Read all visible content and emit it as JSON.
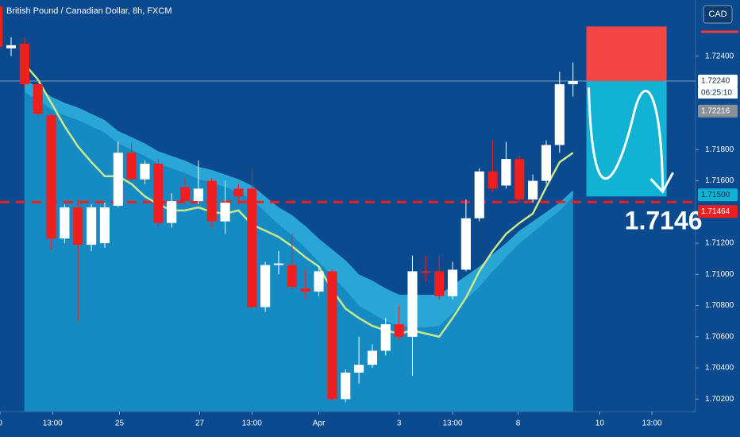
{
  "chart_data": {
    "type": "candlestick",
    "title": "British Pound / Canadian Dollar, 8h, FXCM",
    "currency": "CAD",
    "open": [
      1.7272,
      1.7245,
      1.7248,
      1.7222,
      1.7202,
      1.7123,
      1.7143,
      1.7119,
      1.712,
      1.7144,
      1.7178,
      1.7161,
      1.7171,
      1.7133,
      1.7156,
      1.7147,
      1.716,
      1.7134,
      1.7155,
      1.7155,
      1.7079,
      1.7106,
      1.7106,
      1.7091,
      1.7089,
      1.7102,
      1.702,
      1.7037,
      1.7042,
      1.7051,
      1.7068,
      1.706,
      1.7102,
      1.7102,
      1.7086,
      1.7103,
      1.7136,
      1.7166,
      1.7157,
      1.7174,
      1.7148,
      1.716,
      1.7183,
      1.7222
    ],
    "high": [
      1.7276,
      1.7252,
      1.7252,
      1.7224,
      1.7203,
      1.7145,
      1.7148,
      1.7145,
      1.7146,
      1.7185,
      1.7184,
      1.7173,
      1.7174,
      1.7152,
      1.7162,
      1.7173,
      1.7162,
      1.716,
      1.7158,
      1.7168,
      1.7108,
      1.7115,
      1.7126,
      1.7103,
      1.7105,
      1.7103,
      1.7039,
      1.706,
      1.7055,
      1.7072,
      1.708,
      1.7112,
      1.7112,
      1.7112,
      1.7108,
      1.7148,
      1.7168,
      1.7186,
      1.7185,
      1.7176,
      1.7164,
      1.7186,
      1.723,
      1.7236
    ],
    "low": [
      1.7224,
      1.724,
      1.722,
      1.72,
      1.7116,
      1.712,
      1.707,
      1.7115,
      1.7117,
      1.7143,
      1.7159,
      1.7158,
      1.713,
      1.713,
      1.7145,
      1.7145,
      1.713,
      1.7126,
      1.7145,
      1.7078,
      1.7076,
      1.71,
      1.709,
      1.7084,
      1.7086,
      1.7019,
      1.7018,
      1.703,
      1.704,
      1.7048,
      1.7058,
      1.7035,
      1.7095,
      1.7084,
      1.7084,
      1.7102,
      1.7134,
      1.7153,
      1.7155,
      1.7146,
      1.7146,
      1.7158,
      1.7178,
      1.7214
    ],
    "close": [
      1.7246,
      1.7247,
      1.7222,
      1.7203,
      1.7123,
      1.7143,
      1.7119,
      1.7143,
      1.7143,
      1.7178,
      1.7161,
      1.7171,
      1.7133,
      1.7147,
      1.7147,
      1.7155,
      1.7134,
      1.7146,
      1.715,
      1.7079,
      1.7106,
      1.7107,
      1.7092,
      1.7089,
      1.7102,
      1.702,
      1.7037,
      1.7042,
      1.7051,
      1.7068,
      1.706,
      1.7102,
      1.7101,
      1.7086,
      1.7103,
      1.7136,
      1.7166,
      1.7155,
      1.7174,
      1.7148,
      1.716,
      1.7183,
      1.7222,
      1.7224
    ],
    "ema": [
      null,
      null,
      1.7235,
      1.7225,
      1.721,
      1.7195,
      1.7182,
      1.7172,
      1.7163,
      1.7163,
      1.7158,
      1.715,
      1.7145,
      1.7141,
      1.7141,
      1.7143,
      1.714,
      1.7139,
      1.7141,
      1.7132,
      1.7128,
      1.7124,
      1.7118,
      1.7111,
      1.7105,
      1.709,
      1.7078,
      1.7072,
      1.7067,
      1.7064,
      1.7062,
      1.7064,
      1.7062,
      1.706,
      1.7072,
      1.7085,
      1.7102,
      1.7115,
      1.7126,
      1.7133,
      1.7139,
      1.7156,
      1.7172,
      1.7178
    ],
    "cloud_upper": [
      null,
      null,
      1.7225,
      1.722,
      1.7214,
      1.721,
      1.7207,
      1.7203,
      1.7199,
      1.7192,
      1.7188,
      1.7184,
      1.7179,
      1.7176,
      1.7173,
      1.7169,
      1.7167,
      1.7164,
      1.7161,
      1.7157,
      1.715,
      1.7143,
      1.7138,
      1.7131,
      1.7123,
      1.7116,
      1.7109,
      1.71,
      1.7096,
      1.7091,
      1.7087,
      1.7087,
      1.7087,
      1.7087,
      1.7093,
      1.7099,
      1.7105,
      1.7113,
      1.712,
      1.7128,
      1.7134,
      1.714,
      1.7146,
      1.7154
    ],
    "cloud_lower": [
      null,
      null,
      1.7217,
      1.7212,
      1.7206,
      1.7202,
      1.7199,
      1.7195,
      1.7191,
      1.7184,
      1.718,
      1.7176,
      1.7171,
      1.7168,
      1.7165,
      1.7161,
      1.7159,
      1.7156,
      1.7153,
      1.7148,
      1.714,
      1.7132,
      1.7125,
      1.7117,
      1.7108,
      1.7099,
      1.709,
      1.708,
      1.7075,
      1.707,
      1.7067,
      1.7066,
      1.7066,
      1.7067,
      1.7075,
      1.7084,
      1.7092,
      1.7102,
      1.7111,
      1.712,
      1.7127,
      1.7134,
      1.7141,
      1.715
    ],
    "up_color": "#ffffff",
    "down_color": "#f01f1f",
    "ema_color": "#c8e88a",
    "cloud_upper_color": "#2aa6d6",
    "cloud_lower_color": "#168bc3",
    "xlim": [
      0.17,
      52.16
    ],
    "xticks": [
      {
        "value": 0.17,
        "label": "0"
      },
      {
        "value": 4.1,
        "label": "13:00"
      },
      {
        "value": 9.1,
        "label": "25"
      },
      {
        "value": 15.1,
        "label": "27"
      },
      {
        "value": 19.0,
        "label": "13:00"
      },
      {
        "value": 24.0,
        "label": "Apr"
      },
      {
        "value": 30.0,
        "label": "3"
      },
      {
        "value": 34.0,
        "label": "13:00"
      },
      {
        "value": 38.9,
        "label": "8"
      },
      {
        "value": 45.0,
        "label": "10"
      },
      {
        "value": 48.9,
        "label": "13:00"
      }
    ],
    "ylim": [
      1.7012,
      1.7276
    ],
    "yticks": [
      {
        "value": 1.724,
        "label": "1.72400"
      },
      {
        "value": 1.718,
        "label": "1.71800"
      },
      {
        "value": 1.716,
        "label": "1.71600"
      },
      {
        "value": 1.712,
        "label": "1.71200"
      },
      {
        "value": 1.71,
        "label": "1.71000"
      },
      {
        "value": 1.708,
        "label": "1.70800"
      },
      {
        "value": 1.706,
        "label": "1.70600"
      },
      {
        "value": 1.704,
        "label": "1.70400"
      },
      {
        "value": 1.702,
        "label": "1.70200"
      }
    ],
    "last_price": {
      "value": 1.7224,
      "label": "1.72240"
    },
    "countdown": "06:25:10",
    "bid_price": {
      "value": 1.72216,
      "label": "1.72216"
    },
    "target": {
      "value": 1.715,
      "label": "1.71500"
    },
    "level": {
      "value": 1.71464,
      "label": "1.71464"
    },
    "annotation": "1.7146",
    "zone_x": [
      44.0,
      50.0
    ],
    "stop_zone": [
      1.7259,
      1.7224
    ],
    "target_zone": [
      1.7224,
      1.715
    ]
  }
}
